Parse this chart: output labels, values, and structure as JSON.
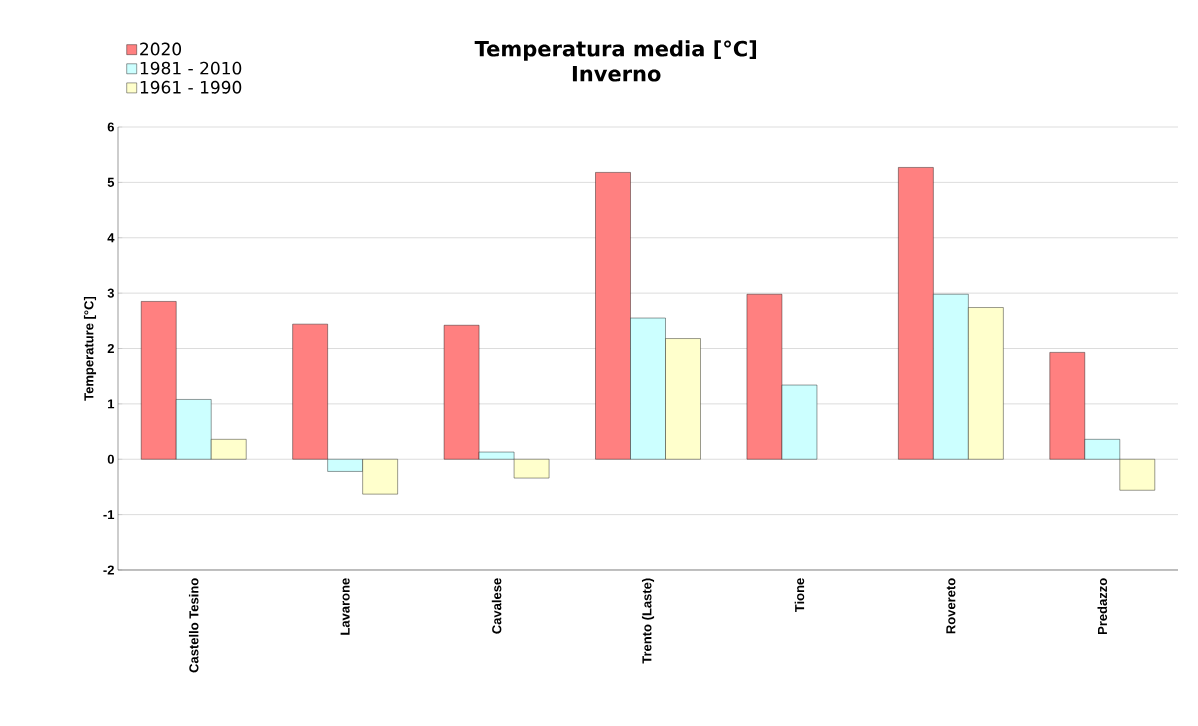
{
  "chart_data": {
    "type": "bar",
    "title": "Temperatura media [°C]",
    "subtitle": "Inverno",
    "ylabel": "Temperature [°C]",
    "categories": [
      "Castello Tesino",
      "Lavarone",
      "Cavalese",
      "Trento (Laste)",
      "Tione",
      "Rovereto",
      "Predazzo"
    ],
    "series": [
      {
        "name": "2020",
        "color": "#ff8080",
        "values": [
          2.85,
          2.44,
          2.42,
          5.18,
          2.98,
          5.27,
          1.93
        ]
      },
      {
        "name": "1981 - 2010",
        "color": "#ccffff",
        "values": [
          1.08,
          -0.22,
          0.13,
          2.55,
          1.34,
          2.98,
          0.36
        ]
      },
      {
        "name": "1961 - 1990",
        "color": "#ffffcc",
        "values": [
          0.36,
          -0.63,
          -0.34,
          2.18,
          null,
          2.74,
          -0.56
        ]
      }
    ],
    "ylim": [
      -2,
      6
    ],
    "yticks": [
      -2,
      -1,
      0,
      1,
      2,
      3,
      4,
      5,
      6
    ],
    "grid": "y",
    "legend": "top left"
  }
}
